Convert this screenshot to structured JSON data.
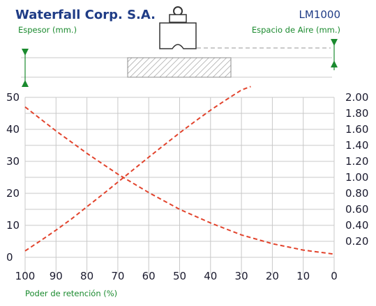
{
  "header": {
    "company": "Waterfall Corp. S.A.",
    "model": "LM1000",
    "left_label": "Espesor (mm.)",
    "right_label": "Espacio de Aire (mm.)"
  },
  "colors": {
    "brand": "#1f3c86",
    "label_green": "#1a8a2e",
    "curve_red": "#e2432c",
    "grid": "#c8c8c8",
    "hatch": "#8c8c8c"
  },
  "icons": [
    "magnet-device-icon",
    "hatched-material-block",
    "arrow-down-icon",
    "arrow-up-icon"
  ],
  "chart_data": {
    "type": "line",
    "title": "",
    "xlabel": "Poder de retención (%)",
    "ylabel_left": "",
    "ylabel_right": "",
    "x_ticks": [
      "100",
      "90",
      "80",
      "70",
      "60",
      "50",
      "40",
      "30",
      "20",
      "10",
      "0"
    ],
    "x_range": [
      100,
      0
    ],
    "y_left_ticks": [
      "50",
      "40",
      "30",
      "20",
      "10",
      "0"
    ],
    "y_left_range": [
      0,
      50
    ],
    "y_right_ticks": [
      "2.00",
      "1.80",
      "1.60",
      "1.40",
      "1.20",
      "1.00",
      "0.80",
      "0.60",
      "0.40",
      "0.20"
    ],
    "y_right_range": [
      0,
      2.0
    ],
    "grid": true,
    "legend": "none",
    "series": [
      {
        "axis": "left",
        "x": [
          100,
          95,
          90,
          85,
          80,
          75,
          70,
          65,
          60,
          55,
          50,
          45,
          40,
          35,
          30,
          27
        ],
        "y": [
          2,
          5.2,
          8.5,
          12,
          15.8,
          19.6,
          23.5,
          27.4,
          31.3,
          35.1,
          38.9,
          42.5,
          46,
          49.2,
          52.3,
          53.4
        ]
      },
      {
        "axis": "right",
        "x": [
          100,
          90,
          80,
          70,
          60,
          50,
          40,
          30,
          20,
          10,
          0
        ],
        "y": [
          1.88,
          1.58,
          1.3,
          1.04,
          0.81,
          0.6,
          0.43,
          0.28,
          0.17,
          0.09,
          0.04
        ]
      }
    ]
  }
}
